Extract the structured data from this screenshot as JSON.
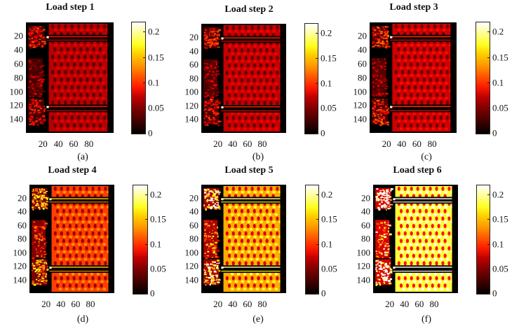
{
  "chart_data": [
    {
      "type": "heatmap",
      "label": "(a)",
      "title": "Load step 1",
      "colormap": "hot",
      "intensity": 0.3,
      "xticks": [
        "20",
        "40",
        "60",
        "80"
      ],
      "yticks": [
        "20",
        "40",
        "60",
        "80",
        "100",
        "120",
        "140"
      ],
      "xlim": [
        0.5,
        115
      ],
      "ylim": [
        0.5,
        160
      ],
      "colorbar": {
        "ticks": [
          "0",
          "0.05",
          "0.1",
          "0.15",
          "0.2"
        ],
        "range": [
          0,
          0.22
        ]
      }
    },
    {
      "type": "heatmap",
      "label": "(b)",
      "title": "Load step 2",
      "colormap": "hot",
      "intensity": 0.32,
      "xticks": [
        "20",
        "40",
        "60",
        "80"
      ],
      "yticks": [
        "20",
        "40",
        "60",
        "80",
        "100",
        "120",
        "140"
      ],
      "xlim": [
        0.5,
        115
      ],
      "ylim": [
        0.5,
        160
      ],
      "colorbar": {
        "ticks": [
          "0",
          "0.05",
          "0.1",
          "0.15",
          "0.2"
        ],
        "range": [
          0,
          0.22
        ]
      }
    },
    {
      "type": "heatmap",
      "label": "(c)",
      "title": "Load step 3",
      "colormap": "hot",
      "intensity": 0.34,
      "xticks": [
        "20",
        "40",
        "60",
        "80"
      ],
      "yticks": [
        "20",
        "40",
        "60",
        "80",
        "100",
        "120",
        "140"
      ],
      "xlim": [
        0.5,
        115
      ],
      "ylim": [
        0.5,
        160
      ],
      "colorbar": {
        "ticks": [
          "0",
          "0.05",
          "0.1",
          "0.15",
          "0.2"
        ],
        "range": [
          0,
          0.22
        ]
      }
    },
    {
      "type": "heatmap",
      "label": "(d)",
      "title": "Load step 4",
      "colormap": "hot",
      "intensity": 0.52,
      "xticks": [
        "20",
        "40",
        "60",
        "80"
      ],
      "yticks": [
        "20",
        "40",
        "60",
        "80",
        "100",
        "120",
        "140"
      ],
      "xlim": [
        0.5,
        115
      ],
      "ylim": [
        0.5,
        160
      ],
      "colorbar": {
        "ticks": [
          "0",
          "0.05",
          "0.1",
          "0.15",
          "0.2"
        ],
        "range": [
          0,
          0.22
        ]
      }
    },
    {
      "type": "heatmap",
      "label": "(e)",
      "title": "Load step 5",
      "colormap": "hot",
      "intensity": 0.7,
      "xticks": [
        "20",
        "40",
        "60",
        "80"
      ],
      "yticks": [
        "20",
        "40",
        "60",
        "80",
        "100",
        "120",
        "140"
      ],
      "xlim": [
        0.5,
        115
      ],
      "ylim": [
        0.5,
        160
      ],
      "colorbar": {
        "ticks": [
          "0",
          "0.05",
          "0.1",
          "0.15",
          "0.2"
        ],
        "range": [
          0,
          0.22
        ]
      }
    },
    {
      "type": "heatmap",
      "label": "(f)",
      "title": "Load step 6",
      "colormap": "hot",
      "intensity": 0.9,
      "xticks": [
        "20",
        "40",
        "60",
        "80"
      ],
      "yticks": [
        "20",
        "40",
        "60",
        "80",
        "100",
        "120",
        "140"
      ],
      "xlim": [
        0.5,
        115
      ],
      "ylim": [
        0.5,
        160
      ],
      "colorbar": {
        "ticks": [
          "0",
          "0.05",
          "0.1",
          "0.15",
          "0.2"
        ],
        "range": [
          0,
          0.22
        ]
      }
    }
  ],
  "panels": [
    {
      "title": "Load step 1",
      "label": "(a)"
    },
    {
      "title": "Load step 2",
      "label": "(b)"
    },
    {
      "title": "Load step 3",
      "label": "(c)"
    },
    {
      "title": "Load step 4",
      "label": "(d)"
    },
    {
      "title": "Load step 5",
      "label": "(e)"
    },
    {
      "title": "Load step 6",
      "label": "(f)"
    }
  ],
  "axes": {
    "yticks": [
      "20",
      "40",
      "60",
      "80",
      "100",
      "120",
      "140"
    ],
    "xticks": [
      "20",
      "40",
      "60",
      "80"
    ],
    "cticks": [
      "0.2",
      "0.15",
      "0.1",
      "0.05",
      "0"
    ]
  }
}
